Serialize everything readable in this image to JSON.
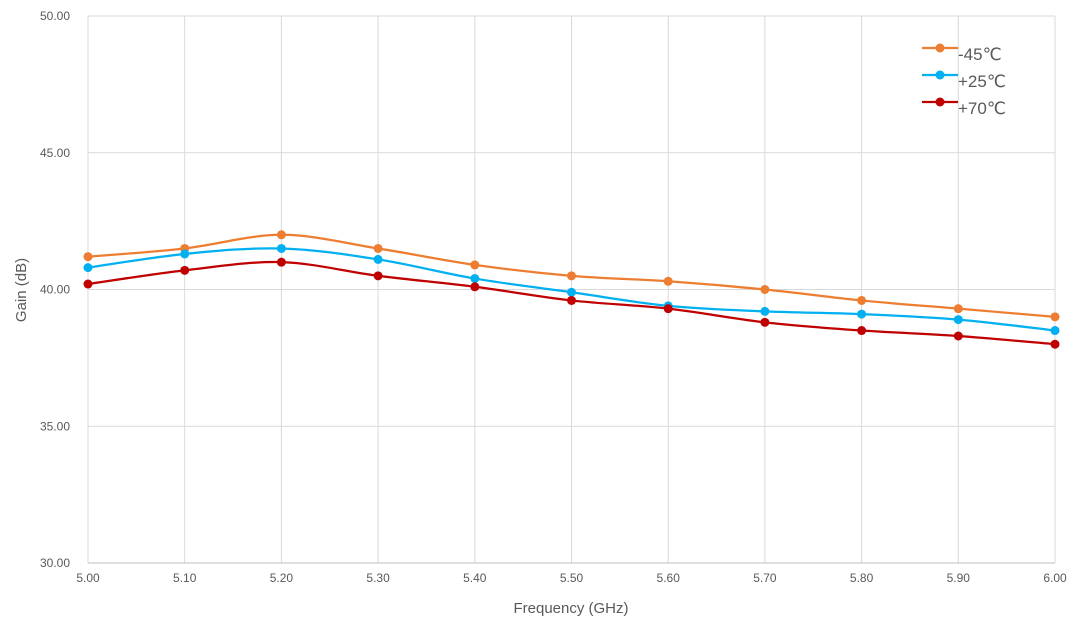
{
  "chart_data": {
    "type": "line",
    "title": "",
    "xlabel": "Frequency (GHz)",
    "ylabel": "Gain (dB)",
    "xlim": [
      5.0,
      6.0
    ],
    "ylim": [
      30.0,
      50.0
    ],
    "x_ticks": [
      "5.00",
      "5.10",
      "5.20",
      "5.30",
      "5.40",
      "5.50",
      "5.60",
      "5.70",
      "5.80",
      "5.90",
      "6.00"
    ],
    "y_ticks": [
      "30.00",
      "35.00",
      "40.00",
      "45.00",
      "50.00"
    ],
    "grid": true,
    "legend_position": "top-right",
    "x": [
      5.0,
      5.1,
      5.2,
      5.3,
      5.4,
      5.5,
      5.6,
      5.7,
      5.8,
      5.9,
      6.0
    ],
    "series": [
      {
        "name": "-45℃",
        "color": "#ED7D31",
        "values": [
          41.2,
          41.5,
          42.0,
          41.5,
          40.9,
          40.5,
          40.3,
          40.0,
          39.6,
          39.3,
          39.0
        ]
      },
      {
        "name": "+25℃",
        "color": "#00B0F0",
        "values": [
          40.8,
          41.3,
          41.5,
          41.1,
          40.4,
          39.9,
          39.4,
          39.2,
          39.1,
          38.9,
          38.5
        ]
      },
      {
        "name": "+70℃",
        "color": "#C00000",
        "values": [
          40.2,
          40.7,
          41.0,
          40.5,
          40.1,
          39.6,
          39.3,
          38.8,
          38.5,
          38.3,
          38.0
        ]
      }
    ]
  }
}
